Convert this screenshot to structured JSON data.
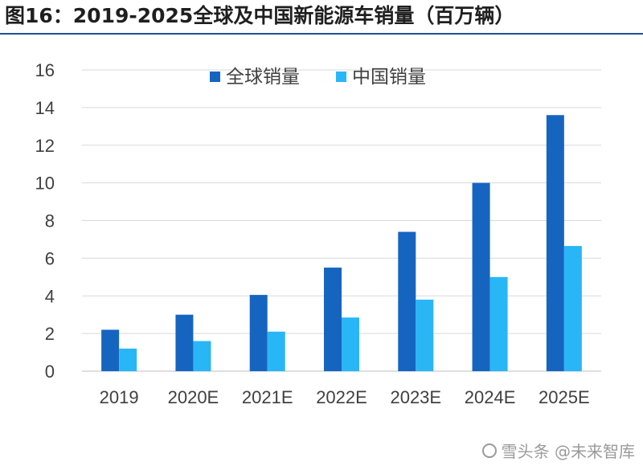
{
  "figure_title": "图16：2019-2025全球及中国新能源车销量（百万辆）",
  "colors": {
    "global": "#1565c0",
    "china": "#29b6f6",
    "title_rule": "#1f4e9a"
  },
  "chart_data": {
    "type": "bar",
    "categories": [
      "2019",
      "2020E",
      "2021E",
      "2022E",
      "2023E",
      "2024E",
      "2025E"
    ],
    "series": [
      {
        "name": "全球销量",
        "values": [
          2.2,
          3.0,
          4.05,
          5.5,
          7.4,
          10.0,
          13.6
        ]
      },
      {
        "name": "中国销量",
        "values": [
          1.2,
          1.6,
          2.1,
          2.85,
          3.8,
          5.0,
          6.65
        ]
      }
    ],
    "yticks": [
      "0",
      "2",
      "4",
      "6",
      "8",
      "10",
      "12",
      "14",
      "16"
    ],
    "ylim": [
      0,
      16
    ],
    "grid": true,
    "legend": "top-center"
  },
  "watermark": "雪头条 @未来智库"
}
